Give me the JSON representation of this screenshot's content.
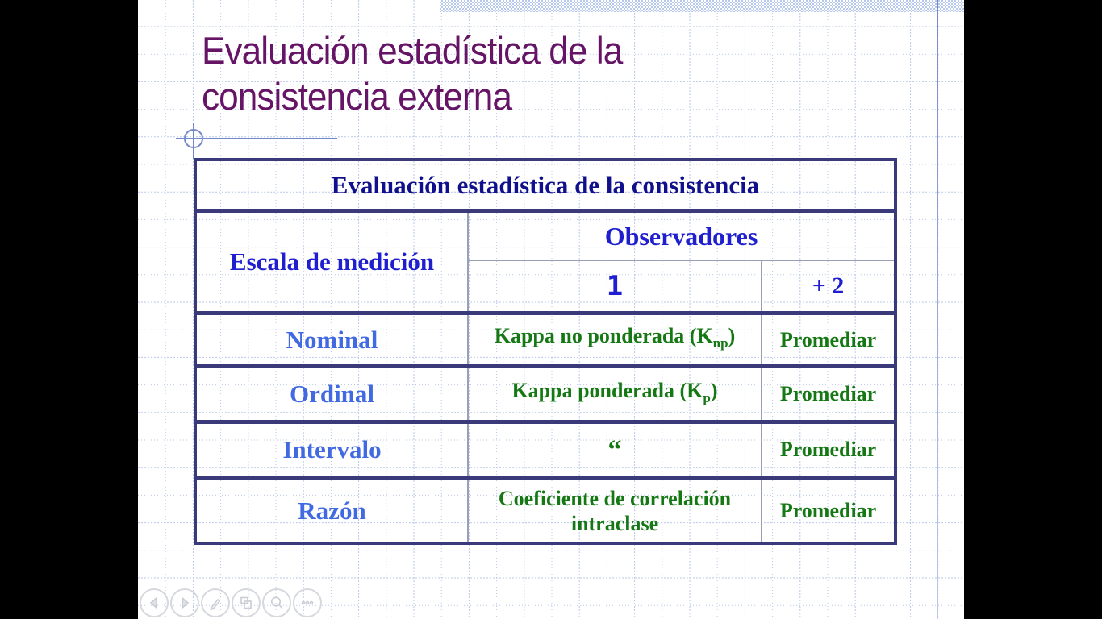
{
  "colors": {
    "bg": "#000000",
    "slide_bg": "#ffffff",
    "grid_line": "#b9c9ea",
    "hatch": "#b7c8ee",
    "accent_line": "#7488cc",
    "title": "#661566",
    "border_dark": "#3a3a7a",
    "border_light": "#9a9fb6",
    "navy": "#10108c",
    "blue": "#1f1fd0",
    "royal": "#4169e1",
    "green": "#157815",
    "nav": "#c9ccd4"
  },
  "slide": {
    "title": {
      "line1": "Evaluación estadística de la",
      "line2": "consistencia externa"
    },
    "table": {
      "title": "Evaluación estadística de la consistencia",
      "scale_header": "Escala de medición",
      "observers_header": "Observadores",
      "observer_col_1": "1",
      "observer_col_2": "+ 2",
      "rows": [
        {
          "scale": "Nominal",
          "method_pre": "Kappa no ponderada (K",
          "method_sub": "np",
          "method_post": ")",
          "action": "Promediar"
        },
        {
          "scale": "Ordinal",
          "method_pre": "Kappa ponderada (K",
          "method_sub": "p",
          "method_post": ")",
          "action": "Promediar"
        },
        {
          "scale": "Intervalo",
          "method_pre": "“",
          "method_sub": "",
          "method_post": "",
          "action": "Promediar"
        },
        {
          "scale": "Razón",
          "method_pre": "Coeficiente de correlación intraclase",
          "method_sub": "",
          "method_post": "",
          "action": "Promediar"
        }
      ]
    }
  },
  "nav": {
    "buttons": [
      {
        "name": "previous"
      },
      {
        "name": "next"
      },
      {
        "name": "pen"
      },
      {
        "name": "see-all-slides"
      },
      {
        "name": "zoom"
      },
      {
        "name": "more"
      }
    ]
  }
}
